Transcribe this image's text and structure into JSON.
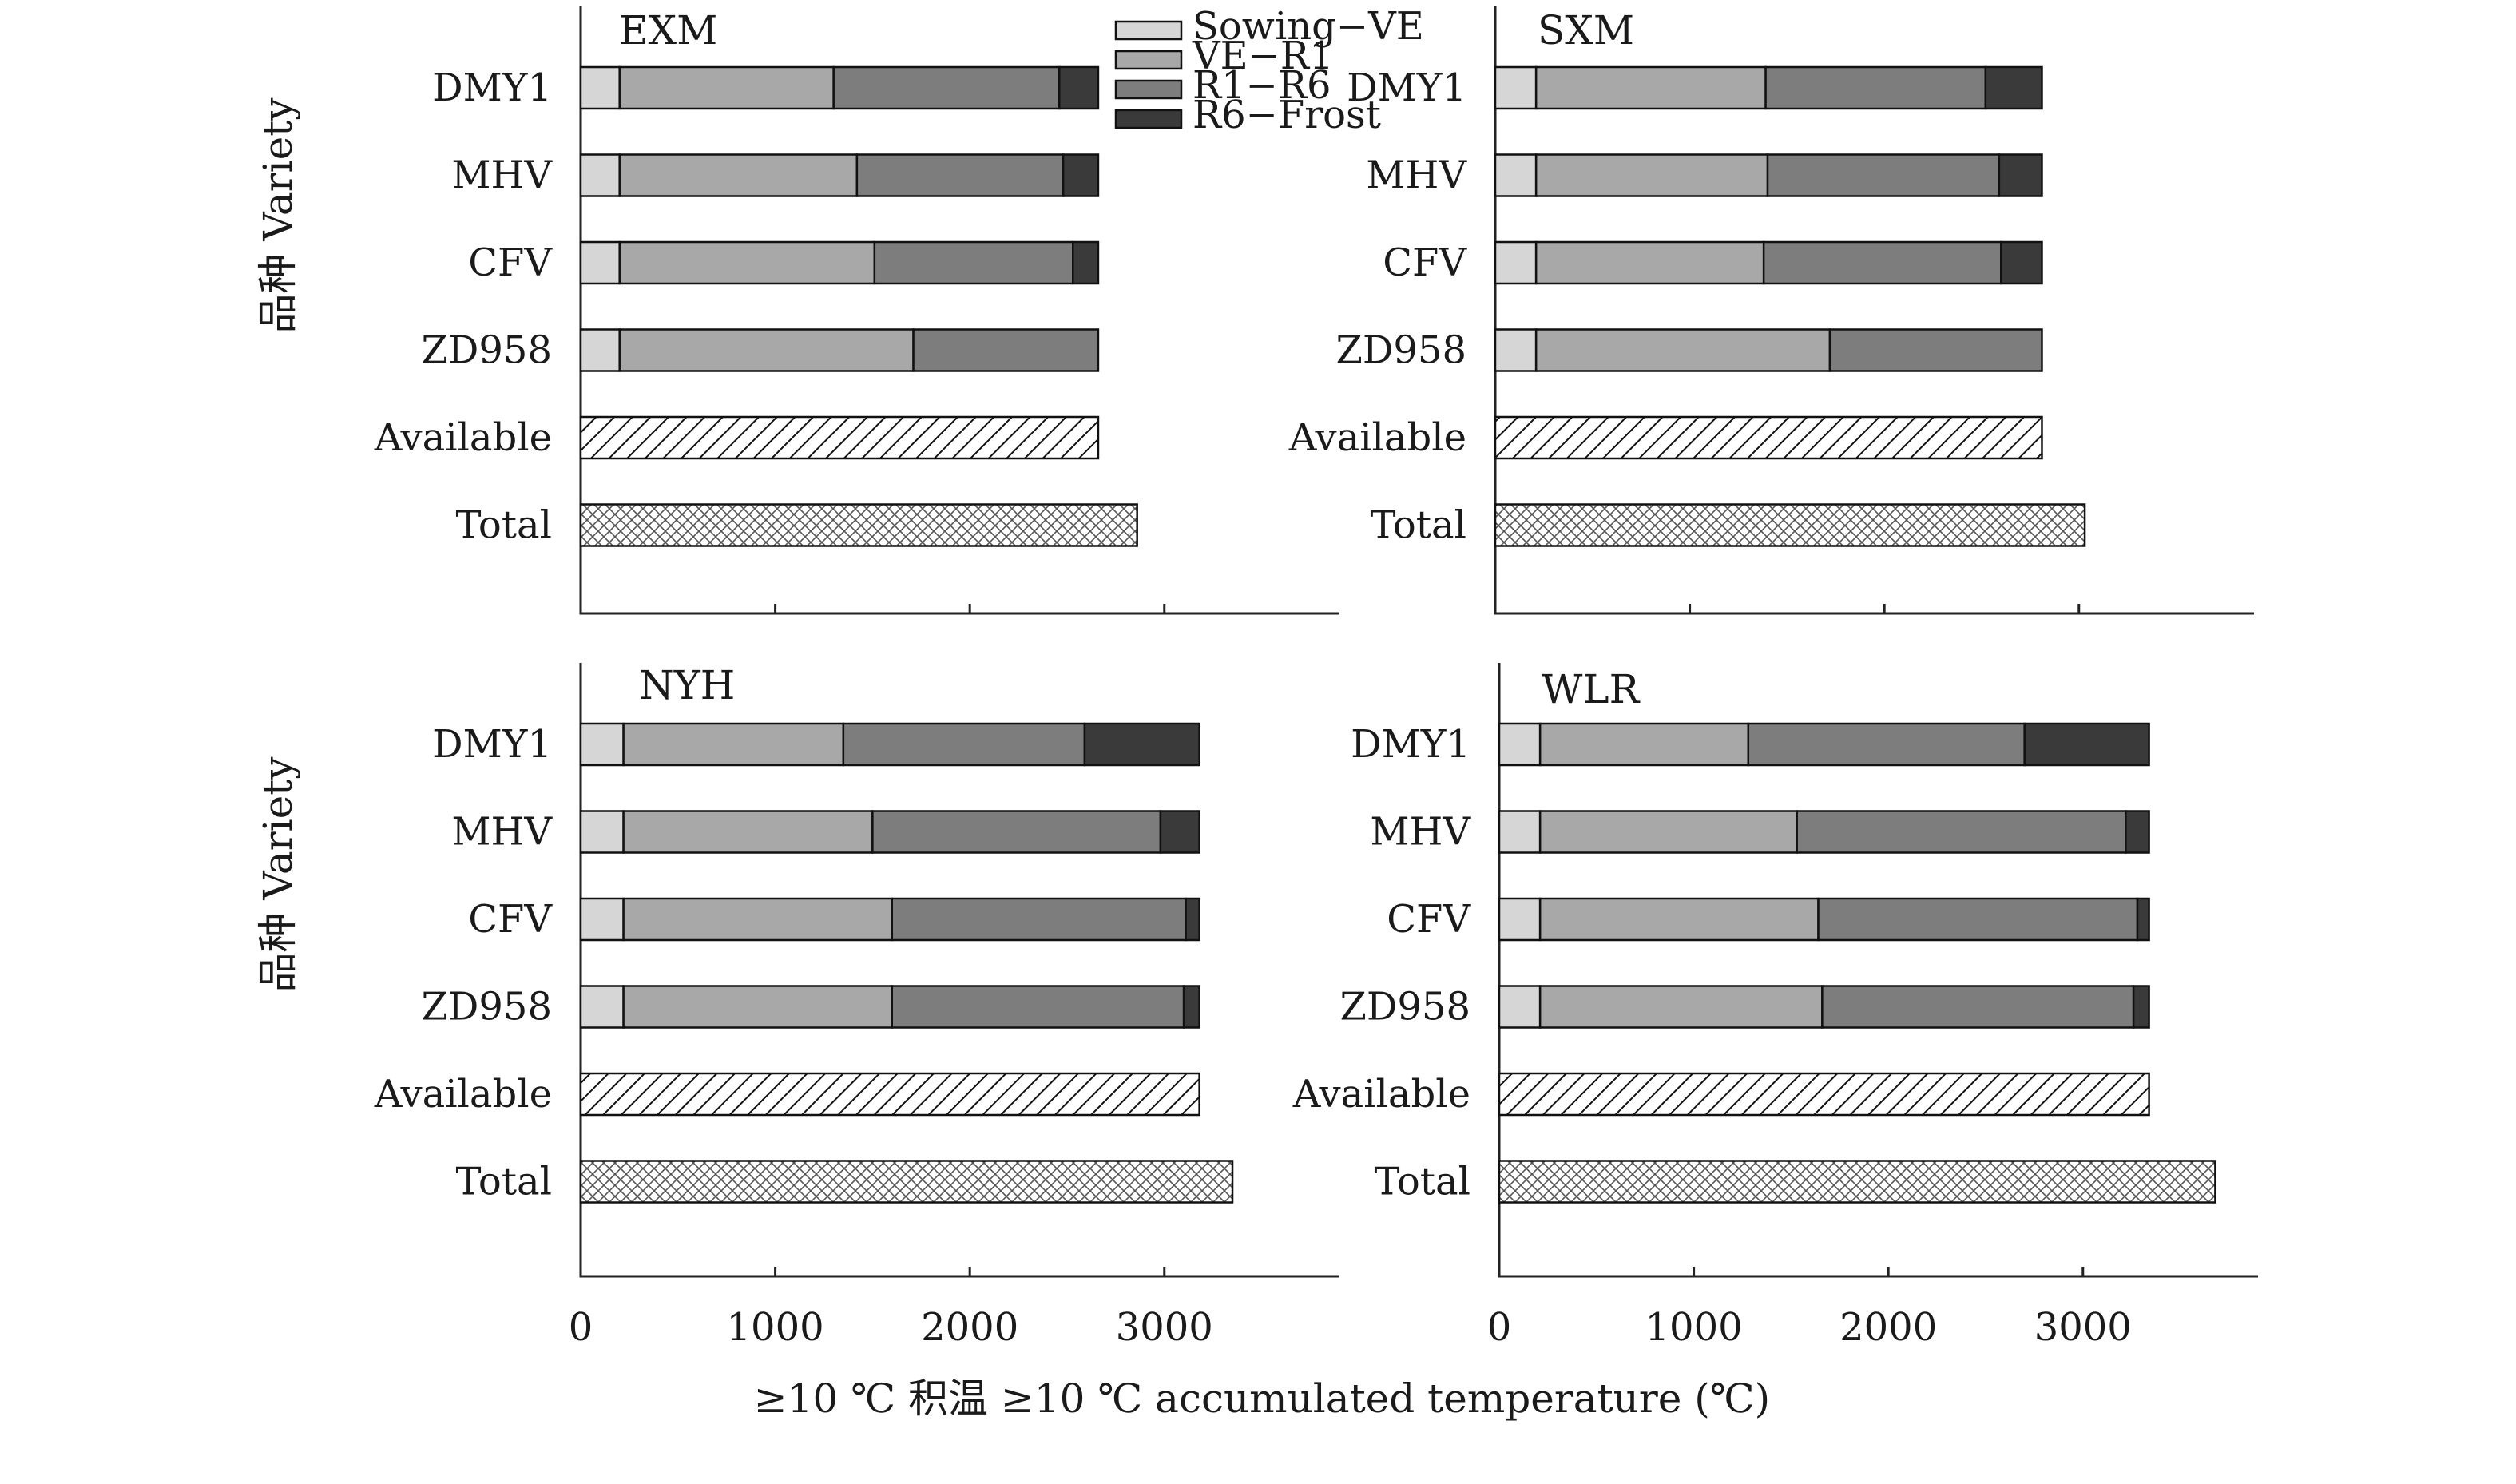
{
  "chart_data": {
    "type": "bar",
    "stacked": true,
    "orientation": "horizontal",
    "xlabel": "≥10 ℃ 积温 ≥10 ℃ accumulated temperature (℃)",
    "ylabel": "品种 Variety",
    "categories": [
      "DMY1",
      "MHV",
      "CFV",
      "ZD958",
      "Available",
      "Total"
    ],
    "xlim": [
      0,
      3900
    ],
    "xticks": [
      0,
      1000,
      2000,
      3000
    ],
    "legend": {
      "placement": "top-center",
      "entries": [
        "Sowing−VE",
        "VE−R1",
        "R1−R6",
        "R6−Frost"
      ]
    },
    "colors": {
      "Sowing−VE": "#d6d6d6",
      "VE−R1": "#a8a8a8",
      "R1−R6": "#7d7d7d",
      "R6−Frost": "#3a3a3a",
      "Available": "diagonal-hatch",
      "Total": "cross-hatch"
    },
    "panels": [
      {
        "title": "EXM",
        "stages": {
          "DMY1": [
            200,
            1100,
            1160,
            200
          ],
          "MHV": [
            200,
            1220,
            1060,
            180
          ],
          "CFV": [
            200,
            1310,
            1020,
            130
          ],
          "ZD958": [
            200,
            1510,
            950,
            0
          ]
        },
        "available": 2660,
        "total": 2860
      },
      {
        "title": "SXM",
        "stages": {
          "DMY1": [
            210,
            1180,
            1130,
            290
          ],
          "MHV": [
            210,
            1190,
            1190,
            220
          ],
          "CFV": [
            210,
            1170,
            1220,
            210
          ],
          "ZD958": [
            210,
            1510,
            1090,
            0
          ]
        },
        "available": 2810,
        "total": 3030
      },
      {
        "title": "NYH",
        "stages": {
          "DMY1": [
            220,
            1130,
            1240,
            590
          ],
          "MHV": [
            220,
            1280,
            1480,
            200
          ],
          "CFV": [
            220,
            1380,
            1510,
            70
          ],
          "ZD958": [
            220,
            1380,
            1500,
            80
          ]
        },
        "available": 3180,
        "total": 3350
      },
      {
        "title": "WLR",
        "stages": {
          "DMY1": [
            210,
            1070,
            1420,
            640
          ],
          "MHV": [
            210,
            1320,
            1690,
            120
          ],
          "CFV": [
            210,
            1430,
            1640,
            60
          ],
          "ZD958": [
            210,
            1450,
            1600,
            80
          ]
        },
        "available": 3340,
        "total": 3680
      }
    ]
  }
}
